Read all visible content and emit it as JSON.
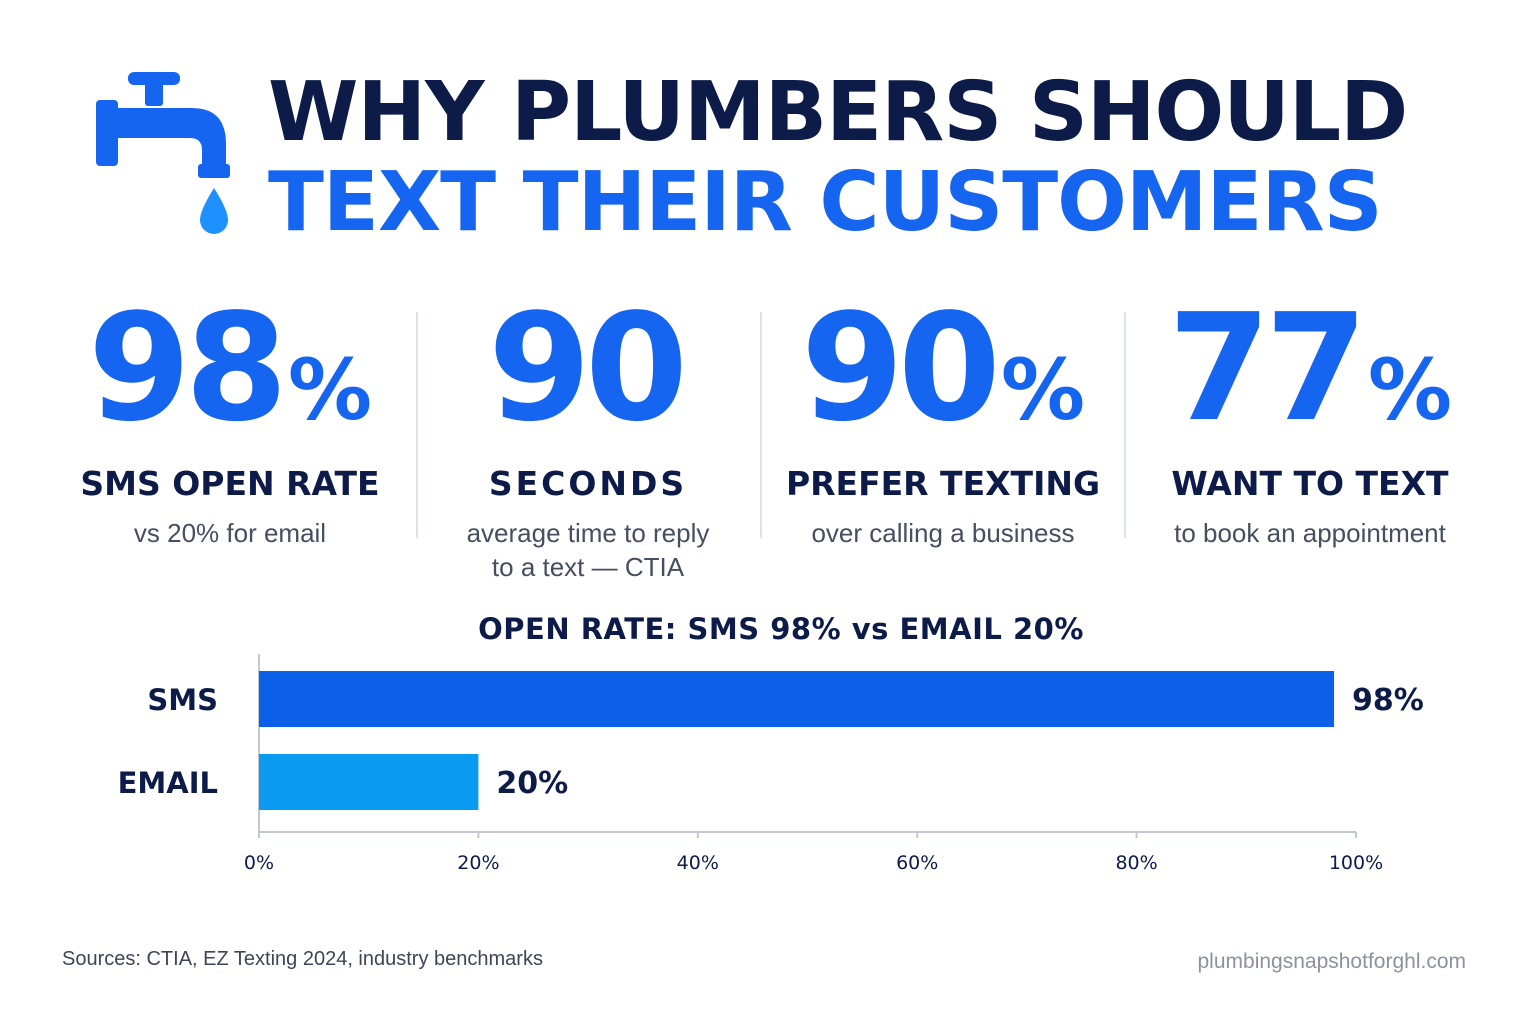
{
  "header": {
    "title_line1": "WHY PLUMBERS SHOULD",
    "title_line2": "TEXT THEIR CUSTOMERS",
    "icon": "faucet-icon"
  },
  "stats": [
    {
      "value": "98",
      "unit": "%",
      "label": "SMS OPEN RATE",
      "sub": "vs 20% for email"
    },
    {
      "value": "90",
      "unit": "",
      "label": "SECONDS",
      "sub": "average time to reply to a text — CTIA"
    },
    {
      "value": "90",
      "unit": "%",
      "label": "PREFER TEXTING",
      "sub": "over calling a business"
    },
    {
      "value": "77",
      "unit": "%",
      "label": "WANT TO TEXT",
      "sub": "to book an appointment"
    }
  ],
  "chart_data": {
    "type": "bar",
    "orientation": "horizontal",
    "title": "OPEN RATE: SMS 98% vs EMAIL 20%",
    "categories": [
      "SMS",
      "EMAIL"
    ],
    "values": [
      98,
      20
    ],
    "value_labels": [
      "98%",
      "20%"
    ],
    "bar_colors": [
      "#0b5fe8",
      "#0a9af0"
    ],
    "xlim": [
      0,
      100
    ],
    "x_ticks": [
      0,
      20,
      40,
      60,
      80,
      100
    ],
    "x_tick_labels": [
      "0%",
      "20%",
      "40%",
      "60%",
      "80%",
      "100%"
    ],
    "grid": false
  },
  "footer": {
    "sources": "Sources: CTIA, EZ Texting 2024, industry benchmarks",
    "site": "plumbingsnapshotforghl.com"
  },
  "colors": {
    "navy": "#0d1b48",
    "blue": "#1565f0",
    "drop": "#1e90ff"
  }
}
